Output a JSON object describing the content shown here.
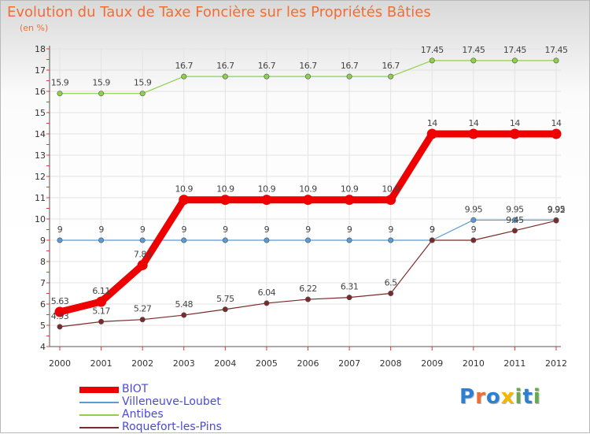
{
  "title": "Evolution du Taux de Taxe Foncière sur les Propriétés Bâties",
  "subtitle": "(en %)",
  "logo": {
    "text": "Proxiti",
    "colors": [
      "#2f7fd1",
      "#ef6e33",
      "#2f7fd1",
      "#f5b800",
      "#6aa84f",
      "#2f7fd1",
      "#6aa84f"
    ]
  },
  "chart_data": {
    "type": "line",
    "title": "Evolution du Taux de Taxe Foncière sur les Propriétés Bâties",
    "ylabel": "(en %)",
    "xlabel": "",
    "x": [
      "2000",
      "2001",
      "2002",
      "2003",
      "2004",
      "2005",
      "2006",
      "2007",
      "2008",
      "2009",
      "2010",
      "2011",
      "2012"
    ],
    "ylim": [
      4,
      18
    ],
    "yticks": [
      "4",
      "5",
      "6",
      "7",
      "8",
      "9",
      "10",
      "11",
      "12",
      "13",
      "14",
      "15",
      "16",
      "17",
      "18"
    ],
    "grid": true,
    "legend": "bottom-left",
    "series": [
      {
        "name": "BIOT",
        "color": "#ee0000",
        "values": [
          5.63,
          6.11,
          7.83,
          10.9,
          10.9,
          10.9,
          10.9,
          10.9,
          10.9,
          14,
          14,
          14,
          14
        ],
        "labels": [
          "5.63",
          "6.11",
          "7.83",
          "10.9",
          "10.9",
          "10.9",
          "10.9",
          "10.9",
          "10.9",
          "14",
          "14",
          "14",
          "14"
        ]
      },
      {
        "name": "Villeneuve-Loubet",
        "color": "#5b9bd5",
        "values": [
          9,
          9,
          9,
          9,
          9,
          9,
          9,
          9,
          9,
          9,
          9.95,
          9.95,
          9.95
        ],
        "labels": [
          "9",
          "9",
          "9",
          "9",
          "9",
          "9",
          "9",
          "9",
          "9",
          "9",
          "9.95",
          "9.95",
          "9.95"
        ]
      },
      {
        "name": "Antibes",
        "color": "#8fd04a",
        "values": [
          15.9,
          15.9,
          15.9,
          16.7,
          16.7,
          16.7,
          16.7,
          16.7,
          16.7,
          17.45,
          17.45,
          17.45,
          17.45
        ],
        "labels": [
          "15.9",
          "15.9",
          "15.9",
          "16.7",
          "16.7",
          "16.7",
          "16.7",
          "16.7",
          "16.7",
          "17.45",
          "17.45",
          "17.45",
          "17.45"
        ]
      },
      {
        "name": "Roquefort-les-Pins",
        "color": "#7a2a2a",
        "values": [
          4.93,
          5.17,
          5.27,
          5.48,
          5.75,
          6.04,
          6.22,
          6.31,
          6.5,
          9,
          9,
          9.45,
          9.92
        ],
        "labels": [
          "4.93",
          "5.17",
          "5.27",
          "5.48",
          "5.75",
          "6.04",
          "6.22",
          "6.31",
          "6.5",
          "9",
          "9",
          "9.45",
          "9.92"
        ]
      }
    ]
  }
}
